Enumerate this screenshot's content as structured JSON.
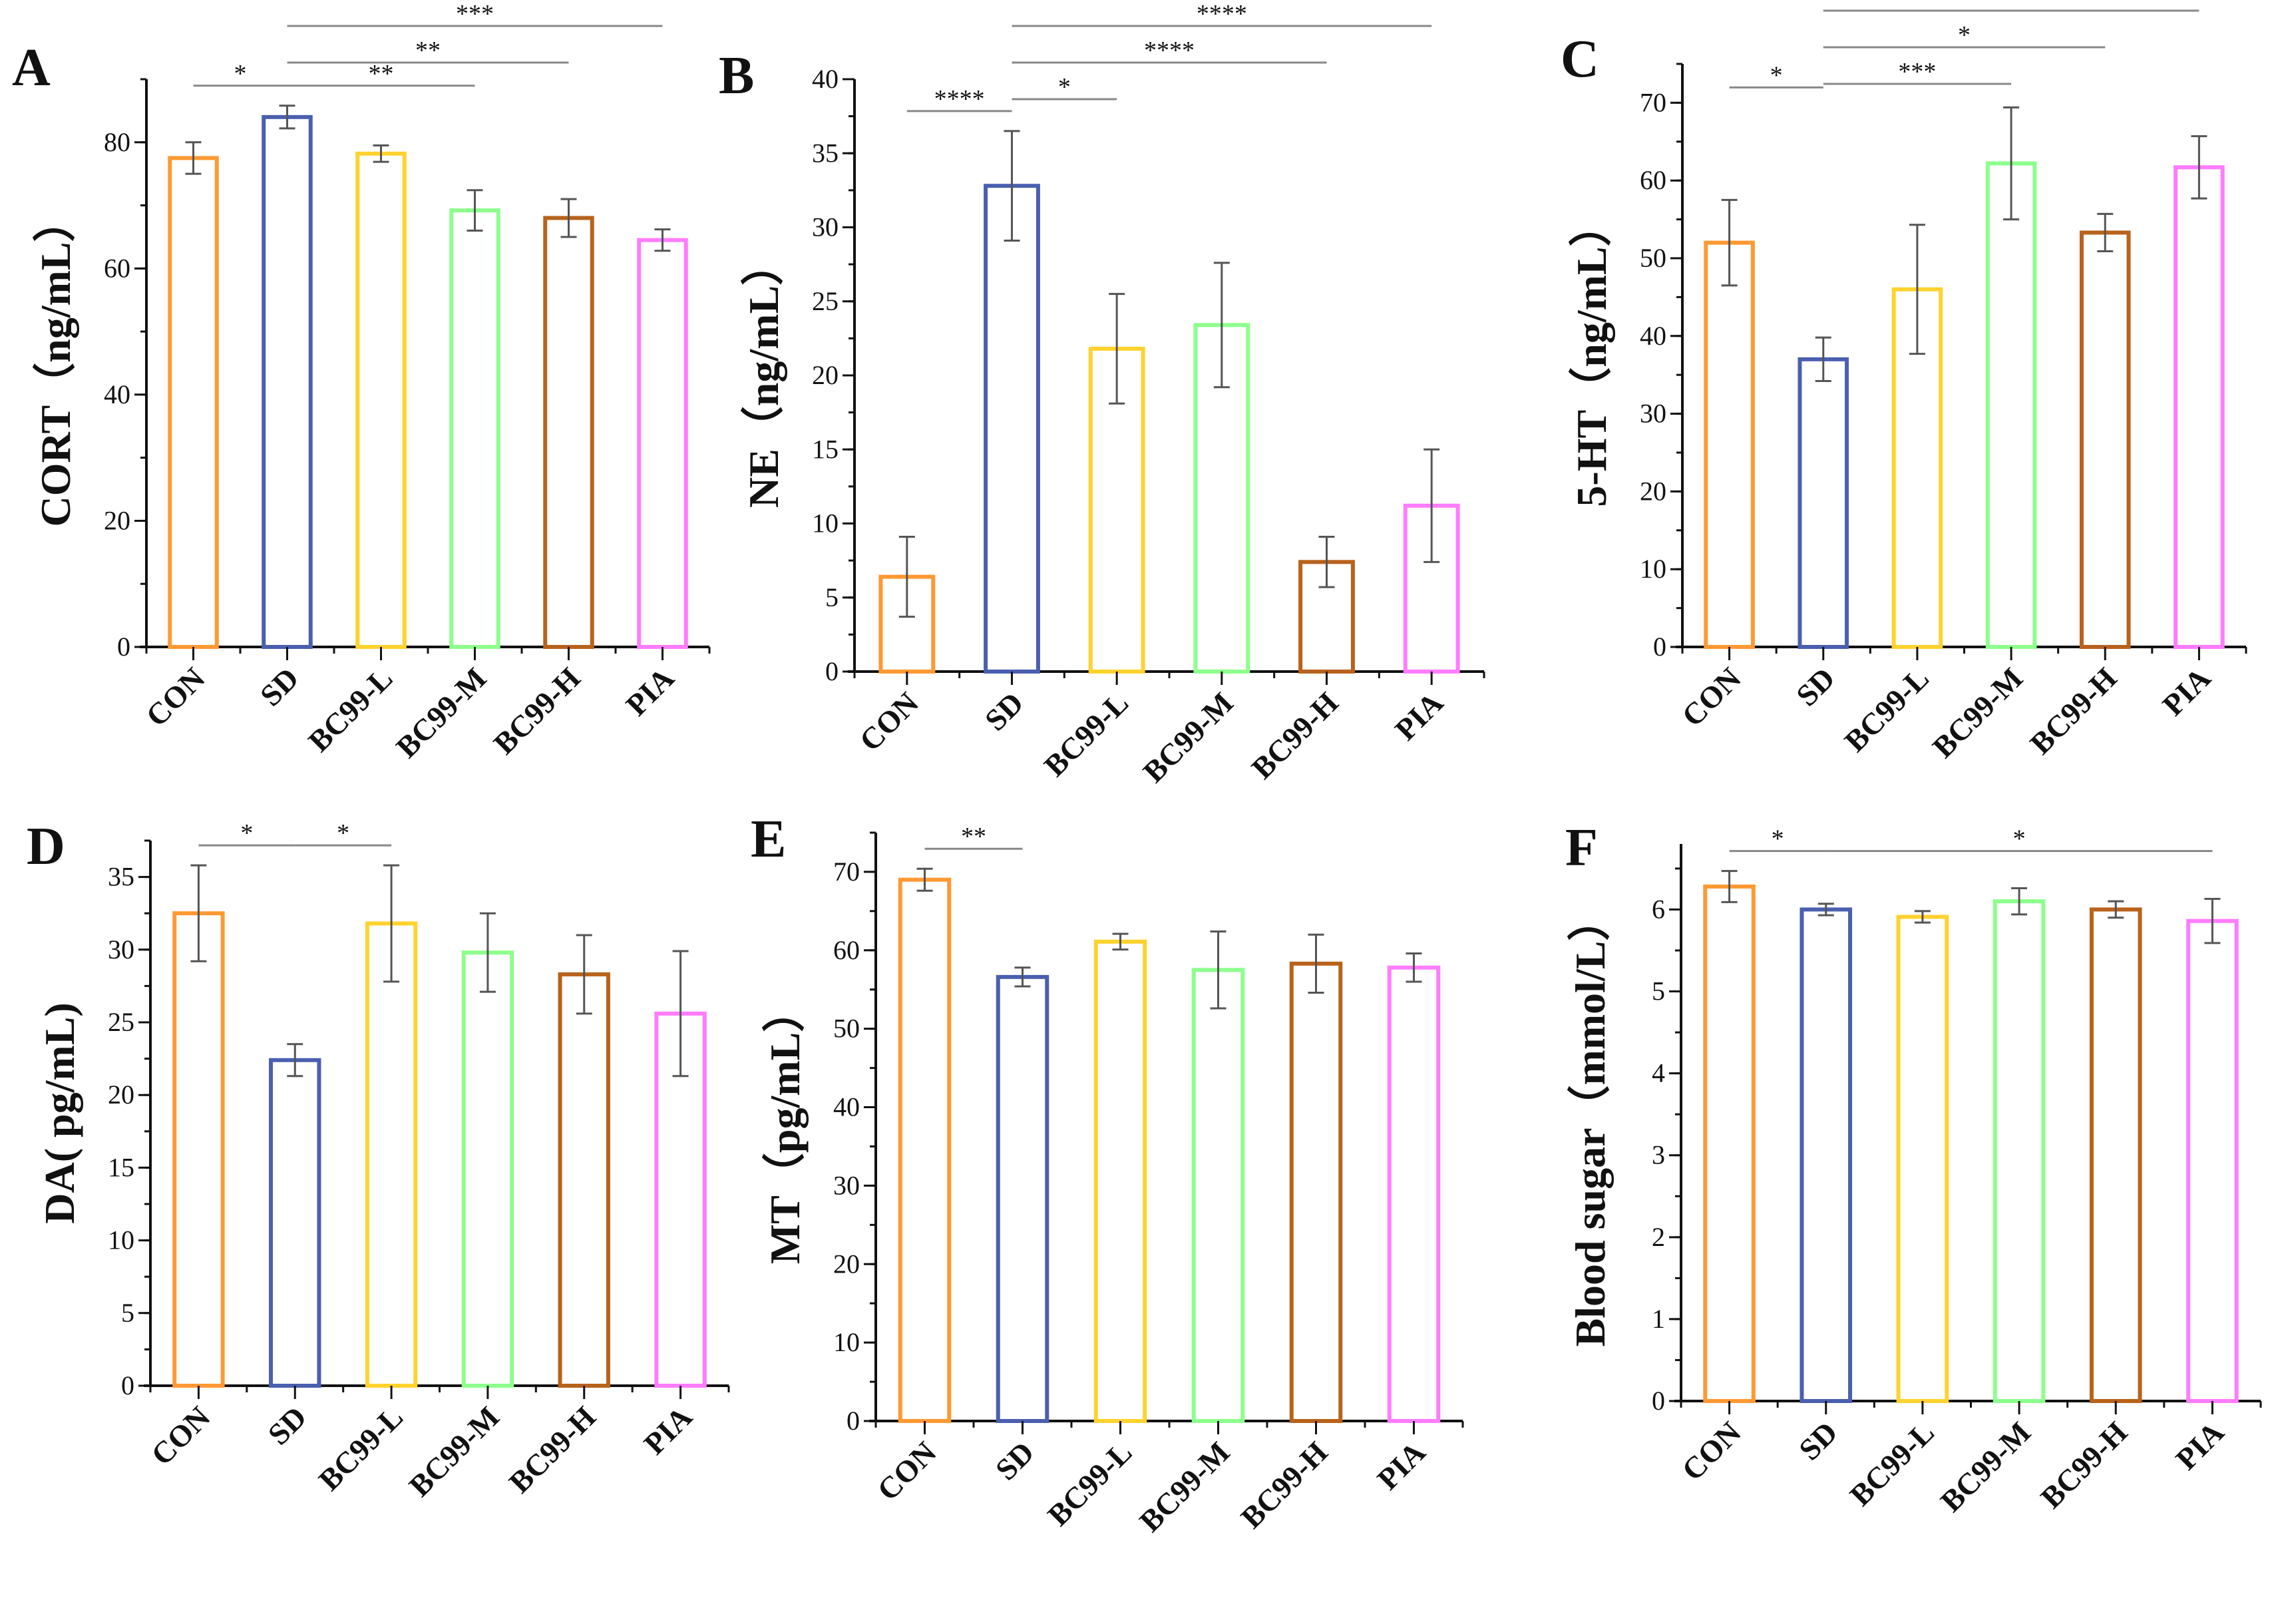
{
  "categories": [
    "CON",
    "SD",
    "BC99-L",
    "BC99-M",
    "BC99-H",
    "PIA"
  ],
  "colors": [
    "#FF9933",
    "#4A5FAF",
    "#FFD22E",
    "#8CFF8C",
    "#B8621B",
    "#FF7CFF"
  ],
  "chart_data": [
    {
      "type": "bar",
      "panel": "A",
      "ylabel": "CORT（ng/mL）",
      "ylim": [
        0,
        90
      ],
      "yticks": [
        0,
        20,
        40,
        60,
        80
      ],
      "minor_step": 10,
      "values": [
        77.5,
        84.0,
        78.2,
        69.2,
        68.0,
        64.5
      ],
      "errors": [
        2.5,
        1.8,
        1.3,
        3.2,
        3.0,
        1.7
      ],
      "significance": [
        {
          "from": "CON",
          "to": "SD",
          "label": "*"
        },
        {
          "from": "SD",
          "to": "BC99-M",
          "label": "**"
        },
        {
          "from": "SD",
          "to": "BC99-H",
          "label": "**"
        },
        {
          "from": "SD",
          "to": "PIA",
          "label": "***"
        }
      ]
    },
    {
      "type": "bar",
      "panel": "B",
      "ylabel": "NE（ng/mL）",
      "ylim": [
        0,
        40
      ],
      "yticks": [
        0,
        5,
        10,
        15,
        20,
        25,
        30,
        35,
        40
      ],
      "minor_step": 2.5,
      "values": [
        6.4,
        32.8,
        21.8,
        23.4,
        7.4,
        11.2
      ],
      "errors": [
        2.7,
        3.7,
        3.7,
        4.2,
        1.7,
        3.8
      ],
      "significance": [
        {
          "from": "CON",
          "to": "SD",
          "label": "****"
        },
        {
          "from": "SD",
          "to": "BC99-L",
          "label": "*"
        },
        {
          "from": "SD",
          "to": "BC99-H",
          "label": "****"
        },
        {
          "from": "SD",
          "to": "PIA",
          "label": "****"
        }
      ]
    },
    {
      "type": "bar",
      "panel": "C",
      "ylabel": "5-HT（ng/mL）",
      "ylim": [
        0,
        75
      ],
      "yticks": [
        0,
        10,
        20,
        30,
        40,
        50,
        60,
        70
      ],
      "minor_step": 5,
      "values": [
        52.0,
        37.0,
        46.0,
        62.2,
        53.3,
        61.7
      ],
      "errors": [
        5.5,
        2.8,
        8.3,
        7.2,
        2.4,
        4.0
      ],
      "significance": [
        {
          "from": "CON",
          "to": "SD",
          "label": "*"
        },
        {
          "from": "SD",
          "to": "BC99-M",
          "label": "***"
        },
        {
          "from": "SD",
          "to": "BC99-H",
          "label": "*"
        },
        {
          "from": "SD",
          "to": "PIA",
          "label": "***"
        }
      ]
    },
    {
      "type": "bar",
      "panel": "D",
      "ylabel": "DA( pg/mL)",
      "ylim": [
        0,
        37.5
      ],
      "yticks": [
        0,
        5,
        10,
        15,
        20,
        25,
        30,
        35
      ],
      "minor_step": 2.5,
      "values": [
        32.5,
        22.4,
        31.8,
        29.8,
        28.3,
        25.6
      ],
      "errors": [
        3.3,
        1.1,
        4.0,
        2.7,
        2.7,
        4.3
      ],
      "significance": [
        {
          "from": "CON",
          "to": "SD",
          "label": "*"
        },
        {
          "from": "SD",
          "to": "BC99-L",
          "label": "*"
        }
      ]
    },
    {
      "type": "bar",
      "panel": "E",
      "ylabel": "MT（pg/mL）",
      "ylim": [
        0,
        75
      ],
      "yticks": [
        0,
        10,
        20,
        30,
        40,
        50,
        60,
        70
      ],
      "minor_step": 5,
      "values": [
        69.0,
        56.6,
        61.1,
        57.5,
        58.3,
        57.8
      ],
      "errors": [
        1.4,
        1.2,
        1.0,
        4.9,
        3.7,
        1.8
      ],
      "significance": [
        {
          "from": "CON",
          "to": "SD",
          "label": "**"
        }
      ]
    },
    {
      "type": "bar",
      "panel": "F",
      "ylabel": "Blood sugar（mmol/L）",
      "ylim": [
        0,
        6.8
      ],
      "yticks": [
        0,
        1,
        2,
        3,
        4,
        5,
        6
      ],
      "minor_step": 0.5,
      "values": [
        6.28,
        6.0,
        5.91,
        6.1,
        6.0,
        5.86
      ],
      "errors": [
        0.19,
        0.07,
        0.07,
        0.16,
        0.1,
        0.27
      ],
      "significance": [
        {
          "from": "CON",
          "to": "SD",
          "label": "*"
        },
        {
          "from": "SD",
          "to": "PIA",
          "label": "*"
        }
      ]
    }
  ]
}
